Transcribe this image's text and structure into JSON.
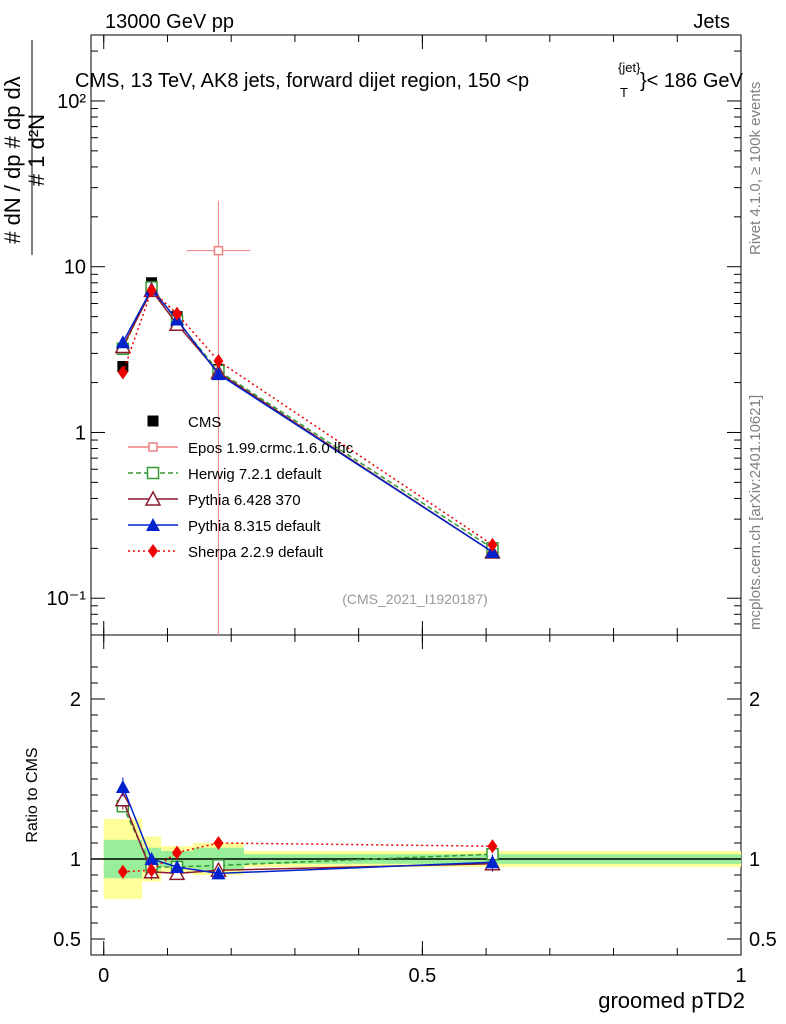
{
  "header": {
    "left": "13000 GeV pp",
    "right": "Jets"
  },
  "side_labels": {
    "rivet": "Rivet 4.1.0, ≥ 100k events",
    "mcplots": "mcplots.cern.ch [arXiv:2401.10621]"
  },
  "chart_data": {
    "type": "scatter",
    "title": "CMS, 13 TeV, AK8 jets, forward dijet region, 150 <p",
    "title_sup": "{jet}",
    "title_sub": "T",
    "title_tail": "}< 186 GeV",
    "watermark": "(CMS_2021_I1920187)",
    "xlabel": "groomed pTD2",
    "ylabel_main": "#   1    d²N",
    "ylabel_ratio": "Ratio to CMS",
    "xlim": [
      -0.02,
      1.0
    ],
    "ylim_main": [
      0.06,
      250
    ],
    "ylim_ratio": [
      0.4,
      2.4
    ],
    "x_ticks": [
      {
        "v": 0,
        "label": "0"
      },
      {
        "v": 0.5,
        "label": "0.5"
      },
      {
        "v": 1,
        "label": "1"
      }
    ],
    "y_ticks_main": [
      {
        "v": 0.1,
        "label": "10⁻¹"
      },
      {
        "v": 1,
        "label": "1"
      },
      {
        "v": 10,
        "label": "10"
      },
      {
        "v": 100,
        "label": "10²"
      }
    ],
    "y_ticks_ratio": [
      {
        "v": 0.5,
        "label": "0.5"
      },
      {
        "v": 1,
        "label": "1"
      },
      {
        "v": 2,
        "label": "2"
      }
    ],
    "bins": [
      {
        "lo": 0.0,
        "hi": 0.06
      },
      {
        "lo": 0.06,
        "hi": 0.09
      },
      {
        "lo": 0.09,
        "hi": 0.14
      },
      {
        "lo": 0.14,
        "hi": 0.22
      },
      {
        "lo": 0.22,
        "hi": 1.0
      }
    ],
    "x": [
      0.03,
      0.075,
      0.115,
      0.18,
      0.61
    ],
    "band_inner": [
      0.12,
      0.07,
      0.05,
      0.07,
      0.03
    ],
    "band_outer": [
      0.25,
      0.14,
      0.08,
      0.1,
      0.05
    ],
    "series": [
      {
        "name": "CMS",
        "color": "#000000",
        "marker": "square",
        "dash": "",
        "values": [
          2.5,
          8.0,
          5.0,
          2.4,
          0.195
        ],
        "errors": [
          0.1,
          0.2,
          0.15,
          0.08,
          0.01
        ],
        "ratios": [
          1,
          1,
          1,
          1,
          1
        ]
      },
      {
        "name": "Epos 1.99.crmc.1.6.0 lhc",
        "color": "#f08080",
        "marker": "open-cross",
        "dash": "",
        "values": [
          null,
          null,
          null,
          12.5,
          null
        ],
        "errors": [
          null,
          null,
          null,
          12.5,
          null
        ],
        "ratios": [
          null,
          null,
          null,
          null,
          null
        ],
        "xerr": 0.05
      },
      {
        "name": "Herwig 7.2.1 default",
        "color": "#339933",
        "marker": "open-square",
        "dash": "5,3",
        "values": [
          3.2,
          7.5,
          4.7,
          2.35,
          0.2
        ],
        "errors": [
          0.05,
          0.1,
          0.08,
          0.05,
          0.005
        ],
        "ratios": [
          1.33,
          0.95,
          0.95,
          0.96,
          1.03
        ]
      },
      {
        "name": "Pythia 6.428 370",
        "color": "#8b1a2e",
        "marker": "open-triangle",
        "dash": "",
        "values": [
          3.3,
          7.2,
          4.5,
          2.3,
          0.19
        ],
        "errors": [
          0.05,
          0.1,
          0.08,
          0.05,
          0.005
        ],
        "ratios": [
          1.37,
          0.92,
          0.91,
          0.93,
          0.97
        ],
        "ratio_errors": [
          0.06,
          0.05,
          0.04,
          0.04,
          0.05
        ]
      },
      {
        "name": "Pythia 8.315 default",
        "color": "#0022cc",
        "marker": "triangle",
        "dash": "",
        "values": [
          3.5,
          7.3,
          4.8,
          2.25,
          0.19
        ],
        "errors": [
          0.05,
          0.1,
          0.08,
          0.05,
          0.005
        ],
        "ratios": [
          1.45,
          1.0,
          0.95,
          0.91,
          0.98
        ],
        "ratio_errors": [
          0.06,
          0.04,
          0.04,
          0.03,
          0.05
        ]
      },
      {
        "name": "Sherpa 2.2.9 default",
        "color": "#ee0000",
        "marker": "diamond",
        "dash": "2,3",
        "values": [
          2.3,
          7.2,
          5.2,
          2.7,
          0.21
        ],
        "errors": [
          0.05,
          0.1,
          0.08,
          0.05,
          0.005
        ],
        "ratios": [
          0.92,
          0.93,
          1.04,
          1.1,
          1.08
        ],
        "ratio_errors": [
          0.04,
          0.04,
          0.04,
          0.03,
          0.04
        ]
      }
    ]
  }
}
